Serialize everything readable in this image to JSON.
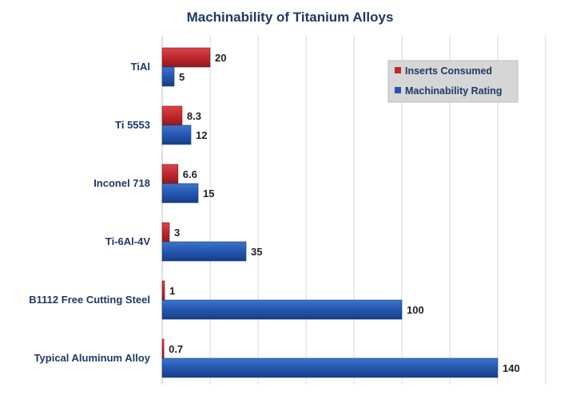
{
  "chart_data": {
    "type": "bar",
    "orientation": "horizontal",
    "title": "Machinability of Titanium Alloys",
    "categories": [
      "TiAl",
      "Ti 5553",
      "Inconel 718",
      "Ti-6Al-4V",
      "B1112 Free Cutting Steel",
      "Typical Aluminum Alloy"
    ],
    "series": [
      {
        "name": "Inserts Consumed",
        "values": [
          20,
          8.3,
          6.6,
          3,
          1,
          0.7
        ],
        "labels": [
          "20",
          "8.3",
          "6.6",
          "3",
          "1",
          "0.7"
        ],
        "color": "#c0282d"
      },
      {
        "name": "Machinability Rating",
        "values": [
          5,
          12,
          15,
          35,
          100,
          140
        ],
        "labels": [
          "5",
          "12",
          "15",
          "35",
          "100",
          "140"
        ],
        "color": "#2457b0"
      }
    ],
    "xlim": [
      0,
      160
    ],
    "grid": true,
    "legend_position": "top-right"
  }
}
